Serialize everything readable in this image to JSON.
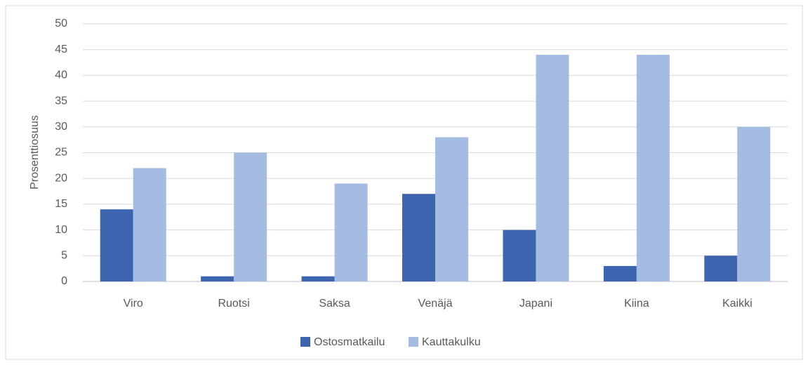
{
  "chart_data": {
    "type": "bar",
    "y_label": "Prosenttiosuus",
    "categories": [
      "Viro",
      "Ruotsi",
      "Saksa",
      "Venäjä",
      "Japani",
      "Kiina",
      "Kaikki"
    ],
    "series": [
      {
        "name": "Ostosmatkailu",
        "color": "#3d64ae",
        "values": [
          14,
          1,
          1,
          17,
          10,
          3,
          5
        ]
      },
      {
        "name": "Kauttakulku",
        "color": "#a4bbe2",
        "values": [
          22,
          25,
          19,
          28,
          44,
          44,
          30
        ]
      }
    ],
    "ylim": [
      0,
      50
    ],
    "yticks": [
      0,
      5,
      10,
      15,
      20,
      25,
      30,
      35,
      40,
      45,
      50
    ],
    "grid": true,
    "legend": "bottom"
  }
}
